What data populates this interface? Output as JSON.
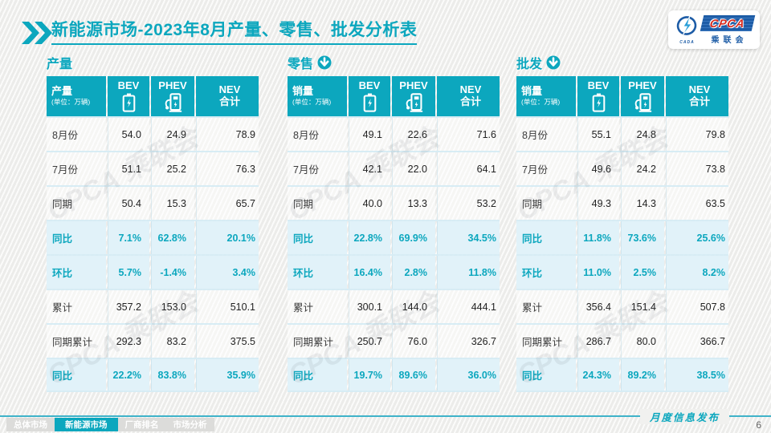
{
  "header": {
    "title_bold": "新能源市场",
    "title_rest": "-2023年8月产量、零售、批发分析表",
    "logo": {
      "brand": "CPCA",
      "brand_sub": "乘联会",
      "emblem": "CADA"
    }
  },
  "columns": {
    "bev": "BEV",
    "phev": "PHEV",
    "nev_line1": "NEV",
    "nev_line2": "合计"
  },
  "watermark": "CPCA 乘联会",
  "colors": {
    "accent": "#0ca7be",
    "highlight_bg": "#e1f2f9",
    "logo_blue": "#1d5ca6",
    "logo_red": "#d6281c"
  },
  "tables": [
    {
      "section_label": "产量",
      "has_arrow": false,
      "header_label": "产量",
      "unit": "(单位：万辆)",
      "rows": [
        {
          "label": "8月份",
          "bev": "54.0",
          "phev": "24.9",
          "nev": "78.9",
          "highlight": false
        },
        {
          "label": "7月份",
          "bev": "51.1",
          "phev": "25.2",
          "nev": "76.3",
          "highlight": false
        },
        {
          "label": "同期",
          "bev": "50.4",
          "phev": "15.3",
          "nev": "65.7",
          "highlight": false
        },
        {
          "label": "同比",
          "bev": "7.1%",
          "phev": "62.8%",
          "nev": "20.1%",
          "highlight": true
        },
        {
          "label": "环比",
          "bev": "5.7%",
          "phev": "-1.4%",
          "nev": "3.4%",
          "highlight": true
        },
        {
          "label": "累计",
          "bev": "357.2",
          "phev": "153.0",
          "nev": "510.1",
          "highlight": false
        },
        {
          "label": "同期累计",
          "bev": "292.3",
          "phev": "83.2",
          "nev": "375.5",
          "highlight": false
        },
        {
          "label": "同比",
          "bev": "22.2%",
          "phev": "83.8%",
          "nev": "35.9%",
          "highlight": true
        }
      ]
    },
    {
      "section_label": "零售",
      "has_arrow": true,
      "header_label": "销量",
      "unit": "(单位：万辆)",
      "rows": [
        {
          "label": "8月份",
          "bev": "49.1",
          "phev": "22.6",
          "nev": "71.6",
          "highlight": false
        },
        {
          "label": "7月份",
          "bev": "42.1",
          "phev": "22.0",
          "nev": "64.1",
          "highlight": false
        },
        {
          "label": "同期",
          "bev": "40.0",
          "phev": "13.3",
          "nev": "53.2",
          "highlight": false
        },
        {
          "label": "同比",
          "bev": "22.8%",
          "phev": "69.9%",
          "nev": "34.5%",
          "highlight": true
        },
        {
          "label": "环比",
          "bev": "16.4%",
          "phev": "2.8%",
          "nev": "11.8%",
          "highlight": true
        },
        {
          "label": "累计",
          "bev": "300.1",
          "phev": "144.0",
          "nev": "444.1",
          "highlight": false
        },
        {
          "label": "同期累计",
          "bev": "250.7",
          "phev": "76.0",
          "nev": "326.7",
          "highlight": false
        },
        {
          "label": "同比",
          "bev": "19.7%",
          "phev": "89.6%",
          "nev": "36.0%",
          "highlight": true
        }
      ]
    },
    {
      "section_label": "批发",
      "has_arrow": true,
      "header_label": "销量",
      "unit": "(单位：万辆)",
      "rows": [
        {
          "label": "8月份",
          "bev": "55.1",
          "phev": "24.8",
          "nev": "79.8",
          "highlight": false
        },
        {
          "label": "7月份",
          "bev": "49.6",
          "phev": "24.2",
          "nev": "73.8",
          "highlight": false
        },
        {
          "label": "同期",
          "bev": "49.3",
          "phev": "14.3",
          "nev": "63.5",
          "highlight": false
        },
        {
          "label": "同比",
          "bev": "11.8%",
          "phev": "73.6%",
          "nev": "25.6%",
          "highlight": true
        },
        {
          "label": "环比",
          "bev": "11.0%",
          "phev": "2.5%",
          "nev": "8.2%",
          "highlight": true
        },
        {
          "label": "累计",
          "bev": "356.4",
          "phev": "151.4",
          "nev": "507.8",
          "highlight": false
        },
        {
          "label": "同期累计",
          "bev": "286.7",
          "phev": "80.0",
          "nev": "366.7",
          "highlight": false
        },
        {
          "label": "同比",
          "bev": "24.3%",
          "phev": "89.2%",
          "nev": "38.5%",
          "highlight": true
        }
      ]
    }
  ],
  "footer": {
    "tabs": [
      {
        "label": "总体市场",
        "active": false
      },
      {
        "label": "新能源市场",
        "active": true
      },
      {
        "label": "厂商排名",
        "active": false
      },
      {
        "label": "市场分析",
        "active": false
      }
    ],
    "publish_label": "月度信息发布",
    "page_number": "6"
  }
}
